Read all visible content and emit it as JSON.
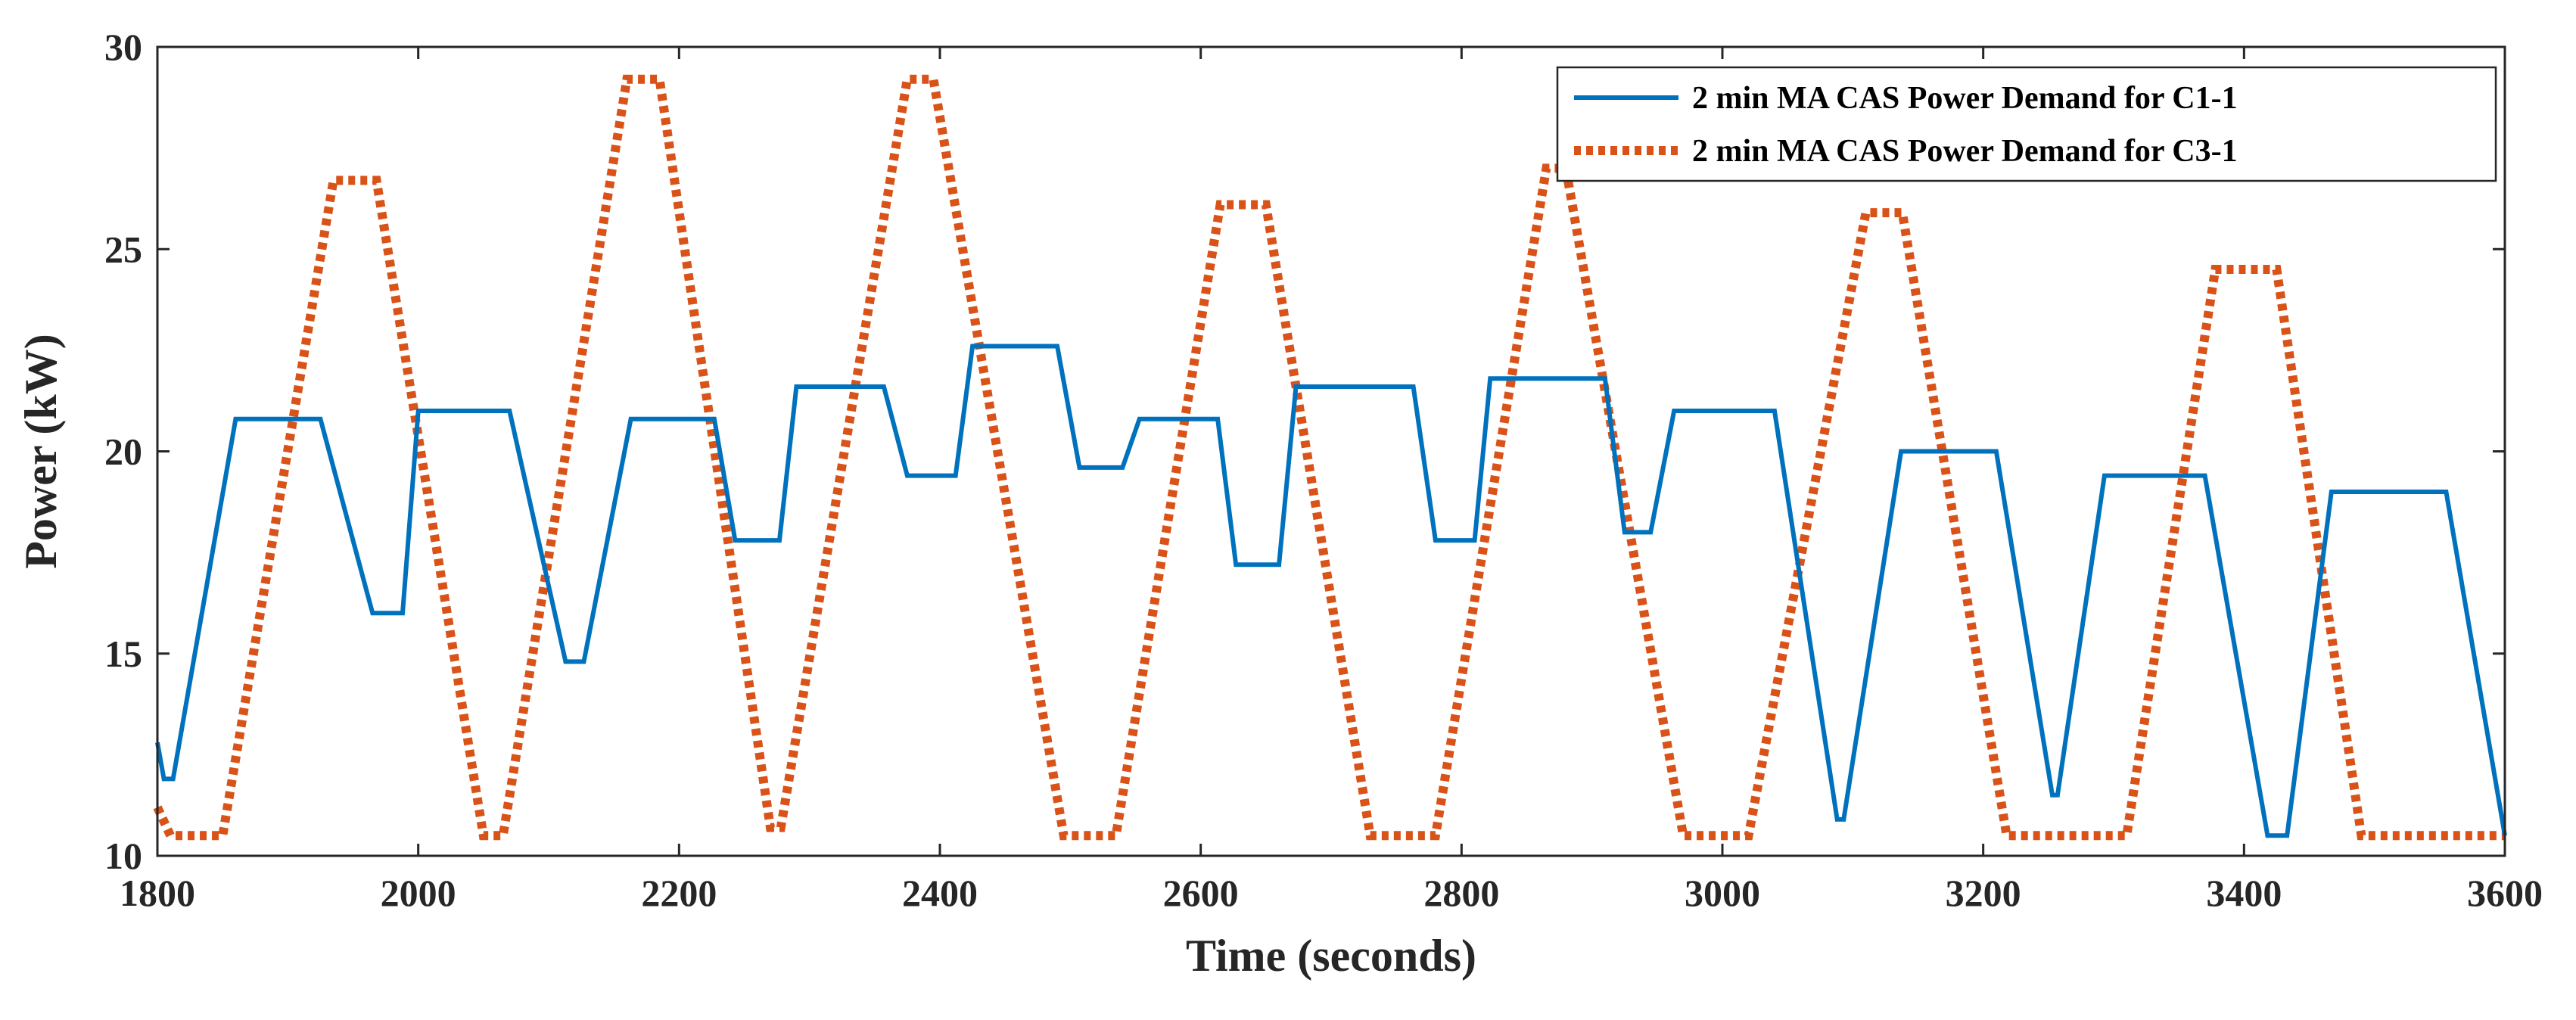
{
  "chart_data": {
    "type": "line",
    "title": "",
    "xlabel": "Time (seconds)",
    "ylabel": "Power (kW)",
    "xlim": [
      1800,
      3600
    ],
    "ylim": [
      10,
      30
    ],
    "xticks": [
      1800,
      2000,
      2200,
      2400,
      2600,
      2800,
      3000,
      3200,
      3400,
      3600
    ],
    "yticks": [
      10,
      15,
      20,
      25,
      30
    ],
    "grid": false,
    "legend_position": "top-right",
    "series": [
      {
        "name": "2 min MA CAS Power Demand for C1-1",
        "color": "#0072BD",
        "style": "solid",
        "x": [
          1800,
          1805,
          1812,
          1860,
          1925,
          1965,
          1988,
          2000,
          2070,
          2113,
          2127,
          2163,
          2227,
          2243,
          2277,
          2290,
          2357,
          2375,
          2412,
          2425,
          2490,
          2507,
          2540,
          2553,
          2613,
          2627,
          2660,
          2673,
          2693,
          2763,
          2780,
          2810,
          2822,
          2867,
          2910,
          2925,
          2945,
          2963,
          3040,
          3088,
          3093,
          3137,
          3210,
          3253,
          3257,
          3293,
          3370,
          3418,
          3433,
          3467,
          3555,
          3600
        ],
        "values": [
          12.8,
          11.9,
          11.9,
          20.8,
          20.8,
          16.0,
          16.0,
          21.0,
          21.0,
          14.8,
          14.8,
          20.8,
          20.8,
          17.8,
          17.8,
          21.6,
          21.6,
          19.4,
          19.4,
          22.6,
          22.6,
          19.6,
          19.6,
          20.8,
          20.8,
          17.2,
          17.2,
          21.6,
          21.6,
          21.6,
          17.8,
          17.8,
          21.8,
          21.8,
          21.8,
          18.0,
          18.0,
          21.0,
          21.0,
          10.9,
          10.9,
          20.0,
          20.0,
          11.5,
          11.5,
          19.4,
          19.4,
          10.5,
          10.5,
          19.0,
          19.0,
          10.5
        ]
      },
      {
        "name": "2 min MA CAS Power Demand for C3-1",
        "color": "#D95319",
        "style": "dotted",
        "x": [
          1800,
          1810,
          1850,
          1935,
          1968,
          2050,
          2065,
          2160,
          2185,
          2270,
          2278,
          2375,
          2395,
          2495,
          2535,
          2615,
          2650,
          2730,
          2780,
          2865,
          2880,
          2970,
          3020,
          3110,
          3138,
          3218,
          3310,
          3378,
          3425,
          3490,
          3600
        ],
        "values": [
          11.2,
          10.5,
          10.5,
          26.7,
          26.7,
          10.5,
          10.5,
          29.2,
          29.2,
          10.7,
          10.7,
          29.2,
          29.2,
          10.5,
          10.5,
          26.1,
          26.1,
          10.5,
          10.5,
          27.0,
          27.0,
          10.5,
          10.5,
          25.9,
          25.9,
          10.5,
          10.5,
          24.5,
          24.5,
          10.5,
          10.5
        ]
      }
    ]
  }
}
